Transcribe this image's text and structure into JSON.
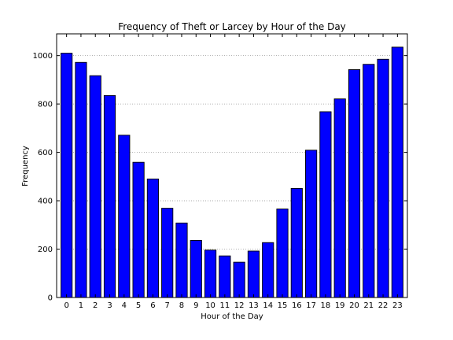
{
  "chart_data": {
    "type": "bar",
    "title": "Frequency of Theft or Larcey by Hour of the Day",
    "xlabel": "Hour of the Day",
    "ylabel": "Frequency",
    "categories": [
      "0",
      "1",
      "2",
      "3",
      "4",
      "5",
      "6",
      "7",
      "8",
      "9",
      "10",
      "11",
      "12",
      "13",
      "14",
      "15",
      "16",
      "17",
      "18",
      "19",
      "20",
      "21",
      "22",
      "23"
    ],
    "values": [
      1010,
      972,
      917,
      835,
      671,
      559,
      490,
      369,
      308,
      236,
      196,
      172,
      146,
      192,
      227,
      366,
      451,
      609,
      768,
      821,
      942,
      964,
      985,
      1035
    ],
    "ylim": [
      0,
      1090
    ],
    "yticks": [
      0,
      200,
      400,
      600,
      800,
      1000
    ],
    "grid": "horizontal dotted",
    "bar_color": "#0000ff",
    "edge_color": "#000000"
  }
}
